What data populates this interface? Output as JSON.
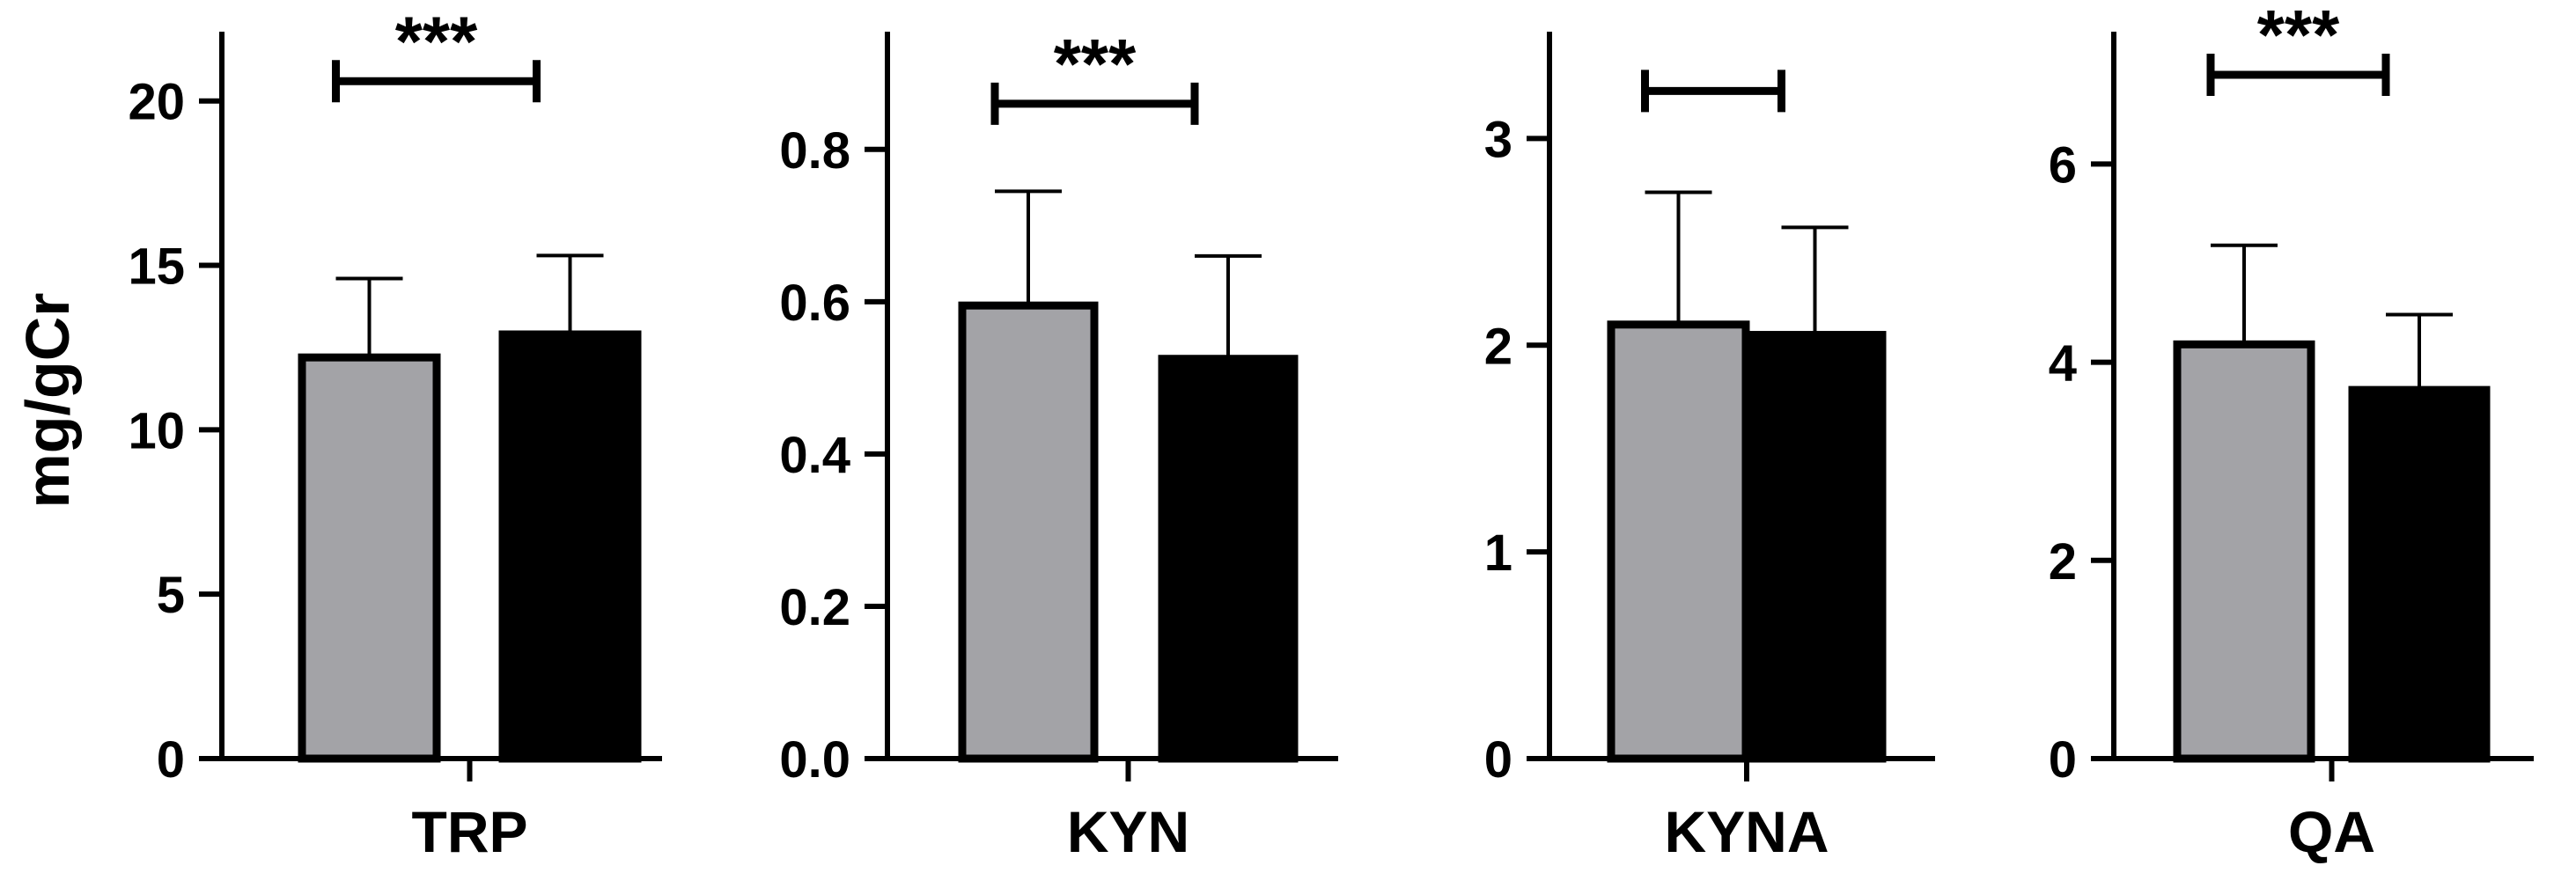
{
  "colors": {
    "group1": "#a3a3a7",
    "group2": "#000000",
    "axis": "#000000"
  },
  "ylabel": "mg/gCr",
  "chart_data": [
    {
      "type": "bar",
      "category": "TRP",
      "ylim": [
        0,
        22
      ],
      "yticks": [
        0,
        5,
        10,
        15,
        20
      ],
      "ytick_labels": [
        "0",
        "5",
        "10",
        "15",
        "20"
      ],
      "series": [
        {
          "values": [
            12.2
          ],
          "error": [
            2.4
          ],
          "color": "#a3a3a7"
        },
        {
          "values": [
            12.9
          ],
          "error": [
            2.4
          ],
          "color": "#000000"
        }
      ],
      "significance": "***",
      "bracket_y": 20.6
    },
    {
      "type": "bar",
      "category": "KYN",
      "ylim": [
        0,
        0.95
      ],
      "yticks": [
        0,
        0.2,
        0.4,
        0.6,
        0.8
      ],
      "ytick_labels": [
        "0.0",
        "0.2",
        "0.4",
        "0.6",
        "0.8"
      ],
      "series": [
        {
          "values": [
            0.595
          ],
          "error": [
            0.15
          ],
          "color": "#a3a3a7"
        },
        {
          "values": [
            0.525
          ],
          "error": [
            0.135
          ],
          "color": "#000000"
        }
      ],
      "significance": "***",
      "bracket_y": 0.86
    },
    {
      "type": "bar",
      "category": "KYNA",
      "ylim": [
        0,
        3.5
      ],
      "yticks": [
        0,
        1,
        2,
        3
      ],
      "ytick_labels": [
        "0",
        "1",
        "2",
        "3"
      ],
      "series": [
        {
          "values": [
            2.1
          ],
          "error": [
            0.64
          ],
          "color": "#a3a3a7"
        },
        {
          "values": [
            2.05
          ],
          "error": [
            0.52
          ],
          "color": "#000000"
        }
      ],
      "significance": "",
      "bracket_y": 3.23
    },
    {
      "type": "bar",
      "category": "QA",
      "ylim": [
        0,
        7.3
      ],
      "yticks": [
        0,
        2,
        4,
        6
      ],
      "ytick_labels": [
        "0",
        "2",
        "4",
        "6"
      ],
      "series": [
        {
          "values": [
            4.18
          ],
          "error": [
            1.0
          ],
          "color": "#a3a3a7"
        },
        {
          "values": [
            3.72
          ],
          "error": [
            0.76
          ],
          "color": "#000000"
        }
      ],
      "significance": "***",
      "bracket_y": 6.9
    }
  ]
}
